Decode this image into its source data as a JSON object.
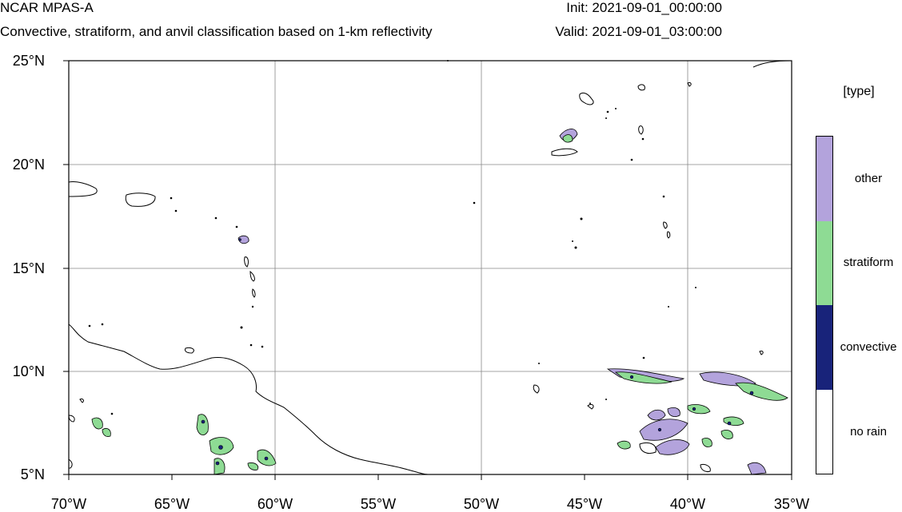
{
  "header": {
    "model": "NCAR MPAS-A",
    "description": "Convective, stratiform, and anvil classification based on 1-km reflectivity",
    "init": "Init: 2021-09-01_00:00:00",
    "valid": "Valid: 2021-09-01_03:00:00"
  },
  "map": {
    "lon_range": [
      -70,
      -35
    ],
    "lat_range": [
      5,
      25
    ],
    "lat_labels": [
      "25°N",
      "20°N",
      "15°N",
      "10°N",
      "5°N"
    ],
    "lon_labels": [
      "70°W",
      "65°W",
      "60°W",
      "55°W",
      "50°W",
      "45°W",
      "40°W",
      "35°W"
    ],
    "grid": true,
    "grid_lines_lon": [
      -65,
      -60,
      -55,
      -50,
      -45,
      -40
    ],
    "grid_lines_lat": [
      10,
      15,
      20
    ]
  },
  "legend": {
    "title": "[type]",
    "categories": [
      {
        "label": "other",
        "color": "#b3a3dc"
      },
      {
        "label": "stratiform",
        "color": "#8edb94"
      },
      {
        "label": "convective",
        "color": "#18237a"
      },
      {
        "label": "no rain",
        "color": "#ffffff"
      }
    ]
  }
}
